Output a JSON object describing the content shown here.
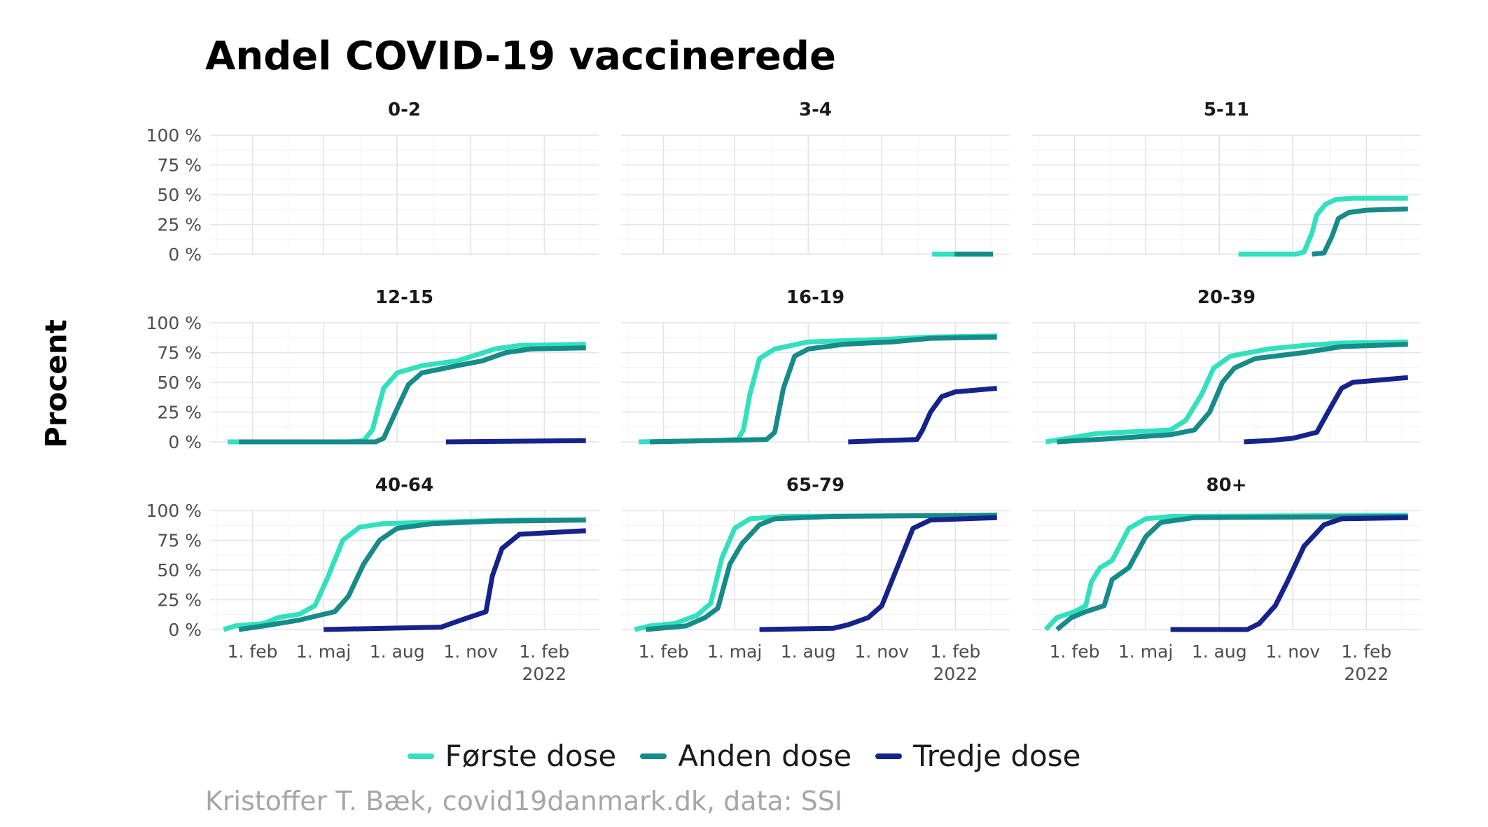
{
  "title": "Andel COVID-19 vaccinerede",
  "caption": "Kristoffer T. Bæk, covid19danmark.dk, data: SSI",
  "chart_data": {
    "type": "line",
    "title": "Andel COVID-19 vaccinerede",
    "ylabel": "Procent",
    "xlabel": "",
    "ylim": [
      0,
      100
    ],
    "xlim": [
      "2020-12-10",
      "2022-04-10"
    ],
    "y_ticks": [
      0,
      25,
      50,
      75,
      100
    ],
    "y_tick_labels": [
      "0 %",
      "25 %",
      "50 %",
      "75 %",
      "100 %"
    ],
    "x_ticks": [
      "2021-02-01",
      "2021-05-01",
      "2021-08-01",
      "2021-11-01",
      "2022-02-01"
    ],
    "x_tick_labels": [
      "1. feb",
      "1. maj",
      "1. aug",
      "1. nov",
      "1. feb\n2022"
    ],
    "grid": true,
    "legend_position": "bottom",
    "series_styles": [
      {
        "name": "Første dose",
        "color": "#33e0bd"
      },
      {
        "name": "Anden dose",
        "color": "#178a8a"
      },
      {
        "name": "Tredje dose",
        "color": "#16238a"
      }
    ],
    "panels": [
      {
        "label": "0-2",
        "series": []
      },
      {
        "label": "3-4",
        "series": [
          {
            "name": "Første dose",
            "points": [
              [
                "2022-01-03",
                0
              ],
              [
                "2022-02-01",
                0
              ],
              [
                "2022-03-20",
                0
              ]
            ]
          },
          {
            "name": "Anden dose",
            "points": [
              [
                "2022-01-31",
                0
              ],
              [
                "2022-03-20",
                0
              ]
            ]
          }
        ]
      },
      {
        "label": "5-11",
        "series": [
          {
            "name": "Første dose",
            "points": [
              [
                "2021-08-25",
                0
              ],
              [
                "2021-11-05",
                0
              ],
              [
                "2021-11-15",
                2
              ],
              [
                "2021-11-25",
                18
              ],
              [
                "2021-12-01",
                33
              ],
              [
                "2021-12-12",
                42
              ],
              [
                "2021-12-25",
                46
              ],
              [
                "2022-01-15",
                47
              ],
              [
                "2022-03-25",
                47
              ]
            ]
          },
          {
            "name": "Anden dose",
            "points": [
              [
                "2021-11-25",
                0
              ],
              [
                "2021-12-10",
                1
              ],
              [
                "2021-12-20",
                15
              ],
              [
                "2021-12-28",
                30
              ],
              [
                "2022-01-10",
                35
              ],
              [
                "2022-02-01",
                37
              ],
              [
                "2022-03-25",
                38
              ]
            ]
          }
        ]
      },
      {
        "label": "12-15",
        "series": [
          {
            "name": "Første dose",
            "points": [
              [
                "2021-01-01",
                0
              ],
              [
                "2021-06-01",
                0
              ],
              [
                "2021-06-20",
                1
              ],
              [
                "2021-07-01",
                10
              ],
              [
                "2021-07-15",
                45
              ],
              [
                "2021-08-01",
                58
              ],
              [
                "2021-09-01",
                64
              ],
              [
                "2021-10-15",
                68
              ],
              [
                "2021-12-01",
                78
              ],
              [
                "2022-01-01",
                81
              ],
              [
                "2022-03-25",
                82
              ]
            ]
          },
          {
            "name": "Anden dose",
            "points": [
              [
                "2021-01-15",
                0
              ],
              [
                "2021-07-05",
                0
              ],
              [
                "2021-07-15",
                3
              ],
              [
                "2021-08-01",
                28
              ],
              [
                "2021-08-15",
                48
              ],
              [
                "2021-09-01",
                58
              ],
              [
                "2021-10-15",
                64
              ],
              [
                "2021-11-15",
                68
              ],
              [
                "2021-12-15",
                75
              ],
              [
                "2022-01-15",
                78
              ],
              [
                "2022-03-25",
                79
              ]
            ]
          },
          {
            "name": "Tredje dose",
            "points": [
              [
                "2021-10-01",
                0
              ],
              [
                "2022-03-25",
                1
              ]
            ]
          }
        ]
      },
      {
        "label": "16-19",
        "series": [
          {
            "name": "Første dose",
            "points": [
              [
                "2021-01-01",
                0
              ],
              [
                "2021-04-01",
                1
              ],
              [
                "2021-05-05",
                2
              ],
              [
                "2021-05-12",
                10
              ],
              [
                "2021-05-20",
                40
              ],
              [
                "2021-06-01",
                70
              ],
              [
                "2021-06-20",
                78
              ],
              [
                "2021-08-01",
                84
              ],
              [
                "2021-11-01",
                86
              ],
              [
                "2022-01-01",
                88
              ],
              [
                "2022-03-25",
                89
              ]
            ]
          },
          {
            "name": "Anden dose",
            "points": [
              [
                "2021-01-15",
                0
              ],
              [
                "2021-04-01",
                1
              ],
              [
                "2021-06-10",
                2
              ],
              [
                "2021-06-20",
                8
              ],
              [
                "2021-07-01",
                45
              ],
              [
                "2021-07-15",
                72
              ],
              [
                "2021-08-01",
                78
              ],
              [
                "2021-09-15",
                82
              ],
              [
                "2021-11-15",
                84
              ],
              [
                "2022-01-01",
                87
              ],
              [
                "2022-03-25",
                88
              ]
            ]
          },
          {
            "name": "Tredje dose",
            "points": [
              [
                "2021-09-20",
                0
              ],
              [
                "2021-12-15",
                2
              ],
              [
                "2021-12-22",
                10
              ],
              [
                "2022-01-01",
                25
              ],
              [
                "2022-01-15",
                38
              ],
              [
                "2022-02-01",
                42
              ],
              [
                "2022-03-25",
                45
              ]
            ]
          }
        ]
      },
      {
        "label": "20-39",
        "series": [
          {
            "name": "Første dose",
            "points": [
              [
                "2020-12-27",
                0
              ],
              [
                "2021-01-15",
                2
              ],
              [
                "2021-03-01",
                7
              ],
              [
                "2021-06-01",
                10
              ],
              [
                "2021-06-20",
                18
              ],
              [
                "2021-07-10",
                40
              ],
              [
                "2021-07-25",
                62
              ],
              [
                "2021-08-15",
                72
              ],
              [
                "2021-10-01",
                78
              ],
              [
                "2021-11-15",
                81
              ],
              [
                "2022-01-01",
                83
              ],
              [
                "2022-03-25",
                84
              ]
            ]
          },
          {
            "name": "Anden dose",
            "points": [
              [
                "2021-01-10",
                0
              ],
              [
                "2021-03-01",
                2
              ],
              [
                "2021-06-01",
                6
              ],
              [
                "2021-07-01",
                10
              ],
              [
                "2021-07-20",
                25
              ],
              [
                "2021-08-05",
                50
              ],
              [
                "2021-08-20",
                62
              ],
              [
                "2021-09-15",
                70
              ],
              [
                "2021-11-15",
                75
              ],
              [
                "2022-01-01",
                80
              ],
              [
                "2022-03-25",
                82
              ]
            ]
          },
          {
            "name": "Tredje dose",
            "points": [
              [
                "2021-09-01",
                0
              ],
              [
                "2021-10-01",
                1
              ],
              [
                "2021-11-01",
                3
              ],
              [
                "2021-12-01",
                8
              ],
              [
                "2021-12-15",
                25
              ],
              [
                "2022-01-01",
                45
              ],
              [
                "2022-01-15",
                50
              ],
              [
                "2022-03-25",
                54
              ]
            ]
          }
        ]
      },
      {
        "label": "40-64",
        "series": [
          {
            "name": "Første dose",
            "points": [
              [
                "2020-12-27",
                0
              ],
              [
                "2021-01-10",
                3
              ],
              [
                "2021-02-15",
                5
              ],
              [
                "2021-03-05",
                10
              ],
              [
                "2021-04-01",
                13
              ],
              [
                "2021-04-20",
                20
              ],
              [
                "2021-05-05",
                42
              ],
              [
                "2021-05-25",
                75
              ],
              [
                "2021-06-15",
                86
              ],
              [
                "2021-07-15",
                89
              ],
              [
                "2021-11-01",
                91
              ],
              [
                "2022-01-01",
                92
              ],
              [
                "2022-03-25",
                92
              ]
            ]
          },
          {
            "name": "Anden dose",
            "points": [
              [
                "2021-01-15",
                0
              ],
              [
                "2021-02-15",
                3
              ],
              [
                "2021-04-01",
                8
              ],
              [
                "2021-05-15",
                15
              ],
              [
                "2021-06-01",
                28
              ],
              [
                "2021-06-20",
                55
              ],
              [
                "2021-07-10",
                75
              ],
              [
                "2021-08-01",
                85
              ],
              [
                "2021-09-15",
                89
              ],
              [
                "2021-12-01",
                91
              ],
              [
                "2022-03-25",
                92
              ]
            ]
          },
          {
            "name": "Tredje dose",
            "points": [
              [
                "2021-05-01",
                0
              ],
              [
                "2021-09-25",
                2
              ],
              [
                "2021-10-20",
                8
              ],
              [
                "2021-11-20",
                15
              ],
              [
                "2021-11-28",
                45
              ],
              [
                "2021-12-10",
                68
              ],
              [
                "2022-01-01",
                80
              ],
              [
                "2022-03-25",
                83
              ]
            ]
          }
        ]
      },
      {
        "label": "65-79",
        "series": [
          {
            "name": "Første dose",
            "points": [
              [
                "2020-12-27",
                0
              ],
              [
                "2021-01-15",
                3
              ],
              [
                "2021-02-15",
                5
              ],
              [
                "2021-03-15",
                12
              ],
              [
                "2021-04-01",
                22
              ],
              [
                "2021-04-15",
                60
              ],
              [
                "2021-05-01",
                85
              ],
              [
                "2021-05-20",
                93
              ],
              [
                "2021-07-01",
                95
              ],
              [
                "2022-03-25",
                96
              ]
            ]
          },
          {
            "name": "Anden dose",
            "points": [
              [
                "2021-01-10",
                0
              ],
              [
                "2021-03-01",
                3
              ],
              [
                "2021-03-25",
                10
              ],
              [
                "2021-04-10",
                18
              ],
              [
                "2021-04-25",
                55
              ],
              [
                "2021-05-10",
                72
              ],
              [
                "2021-06-01",
                88
              ],
              [
                "2021-06-20",
                93
              ],
              [
                "2021-09-01",
                95
              ],
              [
                "2022-03-25",
                96
              ]
            ]
          },
          {
            "name": "Tredje dose",
            "points": [
              [
                "2021-06-01",
                0
              ],
              [
                "2021-09-01",
                1
              ],
              [
                "2021-09-20",
                4
              ],
              [
                "2021-10-15",
                10
              ],
              [
                "2021-11-01",
                20
              ],
              [
                "2021-11-25",
                60
              ],
              [
                "2021-12-10",
                85
              ],
              [
                "2022-01-01",
                92
              ],
              [
                "2022-03-25",
                94
              ]
            ]
          }
        ]
      },
      {
        "label": "80+",
        "series": [
          {
            "name": "Første dose",
            "points": [
              [
                "2020-12-27",
                0
              ],
              [
                "2021-01-10",
                10
              ],
              [
                "2021-02-01",
                15
              ],
              [
                "2021-02-15",
                20
              ],
              [
                "2021-02-22",
                40
              ],
              [
                "2021-03-05",
                52
              ],
              [
                "2021-03-20",
                58
              ],
              [
                "2021-04-10",
                85
              ],
              [
                "2021-05-01",
                93
              ],
              [
                "2021-06-01",
                95
              ],
              [
                "2022-03-25",
                96
              ]
            ]
          },
          {
            "name": "Anden dose",
            "points": [
              [
                "2021-01-10",
                0
              ],
              [
                "2021-01-28",
                10
              ],
              [
                "2021-02-15",
                15
              ],
              [
                "2021-03-10",
                20
              ],
              [
                "2021-03-20",
                42
              ],
              [
                "2021-04-10",
                52
              ],
              [
                "2021-05-01",
                78
              ],
              [
                "2021-05-20",
                90
              ],
              [
                "2021-07-01",
                94
              ],
              [
                "2022-03-25",
                95
              ]
            ]
          },
          {
            "name": "Tredje dose",
            "points": [
              [
                "2021-06-01",
                0
              ],
              [
                "2021-09-05",
                0
              ],
              [
                "2021-09-20",
                5
              ],
              [
                "2021-10-10",
                20
              ],
              [
                "2021-10-25",
                40
              ],
              [
                "2021-11-15",
                70
              ],
              [
                "2021-12-10",
                88
              ],
              [
                "2022-01-01",
                93
              ],
              [
                "2022-03-25",
                94
              ]
            ]
          }
        ]
      }
    ]
  }
}
